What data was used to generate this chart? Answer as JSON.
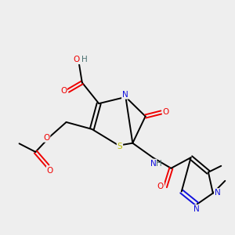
{
  "background_color": "#eeeeee",
  "atom_colors": {
    "C": "#000000",
    "N": "#1010dd",
    "O": "#ee0000",
    "S": "#bbbb00",
    "H": "#4a7070"
  },
  "figsize": [
    3.0,
    3.0
  ],
  "dpi": 100,
  "xlim": [
    0,
    10
  ],
  "ylim": [
    0,
    10
  ],
  "lw": 1.4,
  "fs": 7.5
}
